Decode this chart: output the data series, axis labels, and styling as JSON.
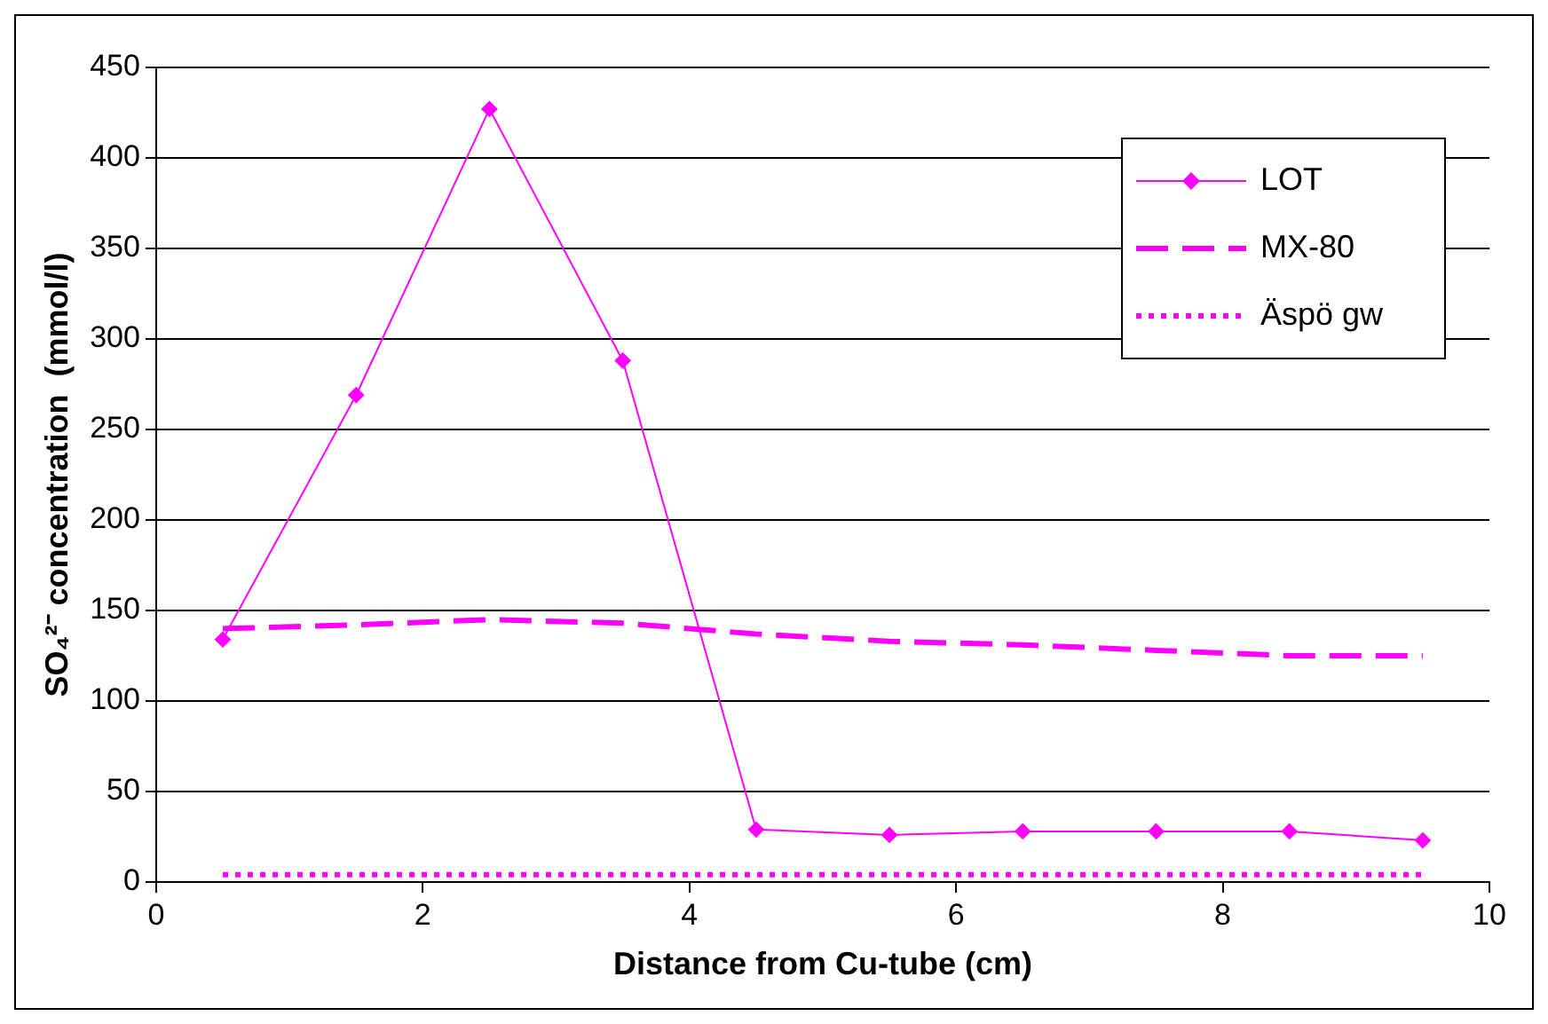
{
  "chart_data": {
    "type": "line",
    "xlabel": "Distance from Cu-tube (cm)",
    "ylabel": "SO₄²⁻ concentration  (mmol/l)",
    "x": [
      0.5,
      1.5,
      2.5,
      3.5,
      4.5,
      5.5,
      6.5,
      7.5,
      8.5,
      9.5
    ],
    "series": [
      {
        "name": "LOT",
        "color": "#ff00ff",
        "marker": "diamond",
        "line_style": "solid",
        "values": [
          134,
          269,
          427,
          288,
          29,
          26,
          28,
          28,
          28,
          23
        ]
      },
      {
        "name": "MX-80",
        "color": "#ff00ff",
        "marker": "none",
        "line_style": "dashed",
        "values": [
          140,
          142,
          145,
          143,
          137,
          133,
          131,
          128,
          125,
          125
        ]
      },
      {
        "name": "Äspö gw",
        "color": "#ff00ff",
        "marker": "none",
        "line_style": "dotted",
        "values": [
          4,
          4,
          4,
          4,
          4,
          4,
          4,
          4,
          4,
          4
        ]
      }
    ],
    "xlim": [
      0,
      10
    ],
    "xticks": [
      0,
      2,
      4,
      6,
      8,
      10
    ],
    "ylim": [
      0,
      450
    ],
    "yticks": [
      0,
      50,
      100,
      150,
      200,
      250,
      300,
      350,
      400,
      450
    ],
    "grid": "y",
    "legend": "top right"
  }
}
